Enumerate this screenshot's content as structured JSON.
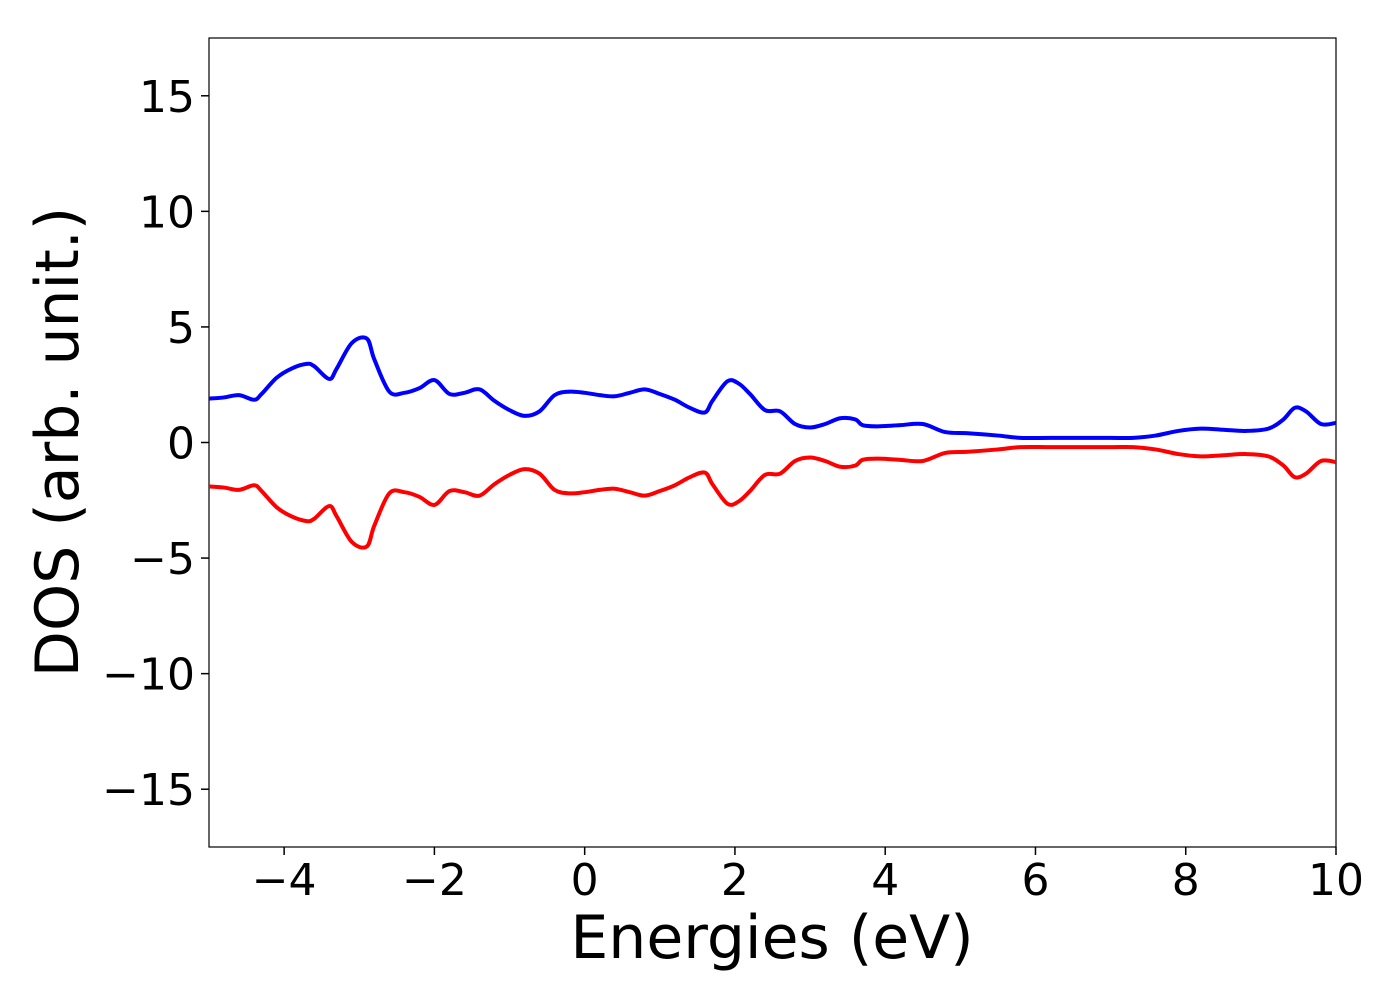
{
  "chart_data": {
    "type": "line",
    "title": "",
    "xlabel": "Energies (eV)",
    "ylabel": "DOS (arb. unit.)",
    "xlim": [
      -5,
      10
    ],
    "ylim": [
      -17.5,
      17.5
    ],
    "xticks": [
      -4,
      -2,
      0,
      2,
      4,
      6,
      8,
      10
    ],
    "yticks": [
      -15,
      -10,
      -5,
      0,
      5,
      10,
      15
    ],
    "xtick_labels": [
      "−4",
      "−2",
      "0",
      "2",
      "4",
      "6",
      "8",
      "10"
    ],
    "ytick_labels": [
      "−15",
      "−10",
      "−5",
      "0",
      "5",
      "10",
      "15"
    ],
    "grid": false,
    "legend": "none",
    "series": [
      {
        "color": "#0000ff",
        "x": [
          -5.0,
          -4.8,
          -4.6,
          -4.4,
          -4.3,
          -4.1,
          -3.9,
          -3.7,
          -3.6,
          -3.4,
          -3.3,
          -3.1,
          -2.9,
          -2.8,
          -2.6,
          -2.4,
          -2.2,
          -2.0,
          -1.8,
          -1.6,
          -1.4,
          -1.2,
          -1.0,
          -0.8,
          -0.6,
          -0.4,
          -0.2,
          0.0,
          0.2,
          0.4,
          0.6,
          0.8,
          1.0,
          1.2,
          1.4,
          1.6,
          1.7,
          1.9,
          2.05,
          2.2,
          2.4,
          2.6,
          2.8,
          3.0,
          3.2,
          3.4,
          3.6,
          3.7,
          3.9,
          4.2,
          4.5,
          4.8,
          5.1,
          5.5,
          5.8,
          6.2,
          6.6,
          7.0,
          7.3,
          7.6,
          7.9,
          8.2,
          8.5,
          8.8,
          9.1,
          9.3,
          9.45,
          9.6,
          9.8,
          10.0
        ],
        "y": [
          1.9,
          1.95,
          2.05,
          1.85,
          2.1,
          2.8,
          3.2,
          3.4,
          3.3,
          2.75,
          3.2,
          4.3,
          4.5,
          3.6,
          2.2,
          2.15,
          2.35,
          2.7,
          2.1,
          2.15,
          2.3,
          1.8,
          1.4,
          1.15,
          1.35,
          2.05,
          2.2,
          2.15,
          2.05,
          2.0,
          2.15,
          2.3,
          2.1,
          1.85,
          1.5,
          1.3,
          1.8,
          2.65,
          2.55,
          2.1,
          1.4,
          1.35,
          0.8,
          0.65,
          0.8,
          1.05,
          1.0,
          0.75,
          0.7,
          0.75,
          0.8,
          0.45,
          0.4,
          0.3,
          0.2,
          0.2,
          0.2,
          0.2,
          0.2,
          0.3,
          0.5,
          0.6,
          0.55,
          0.5,
          0.6,
          1.0,
          1.5,
          1.35,
          0.8,
          0.85
        ]
      },
      {
        "color": "#ff0000",
        "x": [
          -5.0,
          -4.8,
          -4.6,
          -4.4,
          -4.3,
          -4.1,
          -3.9,
          -3.7,
          -3.6,
          -3.4,
          -3.3,
          -3.1,
          -2.9,
          -2.8,
          -2.6,
          -2.4,
          -2.2,
          -2.0,
          -1.8,
          -1.6,
          -1.4,
          -1.2,
          -1.0,
          -0.8,
          -0.6,
          -0.4,
          -0.2,
          0.0,
          0.2,
          0.4,
          0.6,
          0.8,
          1.0,
          1.2,
          1.4,
          1.6,
          1.7,
          1.9,
          2.05,
          2.2,
          2.4,
          2.6,
          2.8,
          3.0,
          3.2,
          3.4,
          3.6,
          3.7,
          3.9,
          4.2,
          4.5,
          4.8,
          5.1,
          5.5,
          5.8,
          6.2,
          6.6,
          7.0,
          7.3,
          7.6,
          7.9,
          8.2,
          8.5,
          8.8,
          9.1,
          9.3,
          9.45,
          9.6,
          9.8,
          10.0
        ],
        "y": [
          -1.9,
          -1.95,
          -2.05,
          -1.85,
          -2.1,
          -2.8,
          -3.2,
          -3.4,
          -3.3,
          -2.75,
          -3.2,
          -4.3,
          -4.5,
          -3.6,
          -2.2,
          -2.15,
          -2.35,
          -2.7,
          -2.1,
          -2.15,
          -2.3,
          -1.8,
          -1.4,
          -1.15,
          -1.35,
          -2.05,
          -2.2,
          -2.15,
          -2.05,
          -2.0,
          -2.15,
          -2.3,
          -2.1,
          -1.85,
          -1.5,
          -1.3,
          -1.8,
          -2.65,
          -2.55,
          -2.1,
          -1.4,
          -1.35,
          -0.8,
          -0.65,
          -0.8,
          -1.05,
          -1.0,
          -0.75,
          -0.7,
          -0.75,
          -0.8,
          -0.45,
          -0.4,
          -0.3,
          -0.2,
          -0.2,
          -0.2,
          -0.2,
          -0.2,
          -0.3,
          -0.5,
          -0.6,
          -0.55,
          -0.5,
          -0.6,
          -1.0,
          -1.5,
          -1.35,
          -0.8,
          -0.85
        ]
      }
    ]
  }
}
